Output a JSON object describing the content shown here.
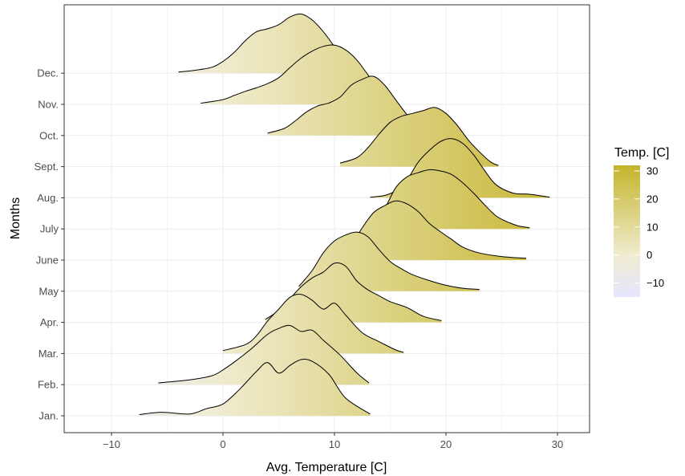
{
  "chart_data": {
    "type": "ridgeline",
    "xlabel": "Avg. Temperature [C]",
    "ylabel": "Months",
    "xlim": [
      -14,
      33
    ],
    "x_ticks": [
      -10,
      0,
      10,
      20,
      30
    ],
    "x_tick_labels": [
      "−10",
      "0",
      "10",
      "20",
      "30"
    ],
    "grid": true,
    "legend": {
      "title": "Temp. [C]",
      "position": "right",
      "ticks": [
        30,
        20,
        10,
        0,
        -10
      ],
      "tick_labels": [
        "30",
        "20",
        "10",
        "0",
        "−10"
      ],
      "range": [
        -15,
        32
      ]
    },
    "colors": {
      "low": "#e6e6ff",
      "mid": "#f0ecd0",
      "high": "#c5b42a",
      "grid": "#ebebeb",
      "outline": "#000000"
    },
    "series": [
      {
        "name": "Jan.",
        "x": [
          -7.5,
          -5.5,
          -3,
          -1.5,
          0,
          1.5,
          3,
          4,
          5,
          6,
          7,
          8,
          9.5,
          11,
          13.2
        ],
        "density": [
          0.02,
          0.06,
          0.03,
          0.12,
          0.2,
          0.45,
          0.75,
          0.9,
          0.72,
          0.85,
          0.95,
          0.92,
          0.7,
          0.3,
          0.03
        ]
      },
      {
        "name": "Feb.",
        "x": [
          -5.8,
          -3,
          -1,
          0,
          1,
          2.5,
          4,
          5,
          6,
          7,
          8,
          9,
          10.5,
          12,
          13.1
        ],
        "density": [
          0.03,
          0.08,
          0.15,
          0.25,
          0.38,
          0.6,
          0.85,
          0.95,
          1.0,
          0.9,
          0.92,
          0.75,
          0.5,
          0.2,
          0.03
        ]
      },
      {
        "name": "Mar.",
        "x": [
          0,
          2,
          3,
          4,
          5,
          6,
          7,
          8,
          9,
          10,
          11,
          12.5,
          14,
          15.5,
          16.2
        ],
        "density": [
          0.05,
          0.15,
          0.3,
          0.55,
          0.75,
          0.95,
          1.0,
          0.9,
          0.75,
          0.85,
          0.65,
          0.35,
          0.2,
          0.06,
          0.02
        ]
      },
      {
        "name": "Apr.",
        "x": [
          3.8,
          5,
          6,
          7,
          8,
          9,
          10,
          11,
          12,
          13,
          14,
          15,
          16.5,
          18,
          19.6
        ],
        "density": [
          0.05,
          0.2,
          0.4,
          0.6,
          0.75,
          0.85,
          1.0,
          0.95,
          0.7,
          0.55,
          0.45,
          0.35,
          0.25,
          0.1,
          0.03
        ]
      },
      {
        "name": "May",
        "x": [
          6.8,
          8,
          9,
          10,
          11,
          12,
          13,
          14,
          15,
          16,
          17,
          18.5,
          20,
          21.5,
          23
        ],
        "density": [
          0.08,
          0.35,
          0.65,
          0.85,
          0.95,
          1.0,
          0.92,
          0.7,
          0.5,
          0.38,
          0.28,
          0.18,
          0.1,
          0.05,
          0.03
        ]
      },
      {
        "name": "June",
        "x": [
          10.3,
          11.5,
          12.5,
          13.5,
          14.5,
          15.5,
          16.5,
          17.5,
          18.5,
          19.5,
          20.5,
          21.5,
          23,
          25,
          27.2
        ],
        "density": [
          0.05,
          0.25,
          0.55,
          0.8,
          0.92,
          1.0,
          0.95,
          0.82,
          0.62,
          0.48,
          0.35,
          0.22,
          0.12,
          0.06,
          0.03
        ]
      },
      {
        "name": "July",
        "x": [
          13.2,
          14.5,
          15.5,
          16.5,
          17.5,
          18.5,
          19.5,
          20.5,
          21.5,
          22.5,
          23.5,
          24.5,
          25.5,
          26.5,
          27.5
        ],
        "density": [
          0.06,
          0.35,
          0.7,
          0.88,
          0.95,
          1.0,
          0.98,
          0.92,
          0.78,
          0.6,
          0.4,
          0.22,
          0.12,
          0.05,
          0.02
        ]
      },
      {
        "name": "Aug.",
        "x": [
          13.2,
          14.5,
          15.5,
          16.5,
          17.5,
          18.5,
          19.5,
          20.5,
          21.5,
          22.5,
          23.5,
          24.5,
          26,
          27.5,
          29.3
        ],
        "density": [
          0.01,
          0.04,
          0.12,
          0.3,
          0.6,
          0.8,
          0.95,
          1.0,
          0.92,
          0.72,
          0.45,
          0.22,
          0.08,
          0.06,
          0.01
        ]
      },
      {
        "name": "Sept.",
        "x": [
          10.5,
          12,
          13,
          14,
          15,
          16,
          17,
          18,
          19,
          20,
          21,
          22,
          23,
          24,
          24.7
        ],
        "density": [
          0.06,
          0.15,
          0.32,
          0.55,
          0.75,
          0.85,
          0.9,
          0.95,
          1.0,
          0.9,
          0.7,
          0.45,
          0.25,
          0.08,
          0.02
        ]
      },
      {
        "name": "Oct.",
        "x": [
          4,
          5.5,
          6.5,
          7.5,
          8.5,
          9.5,
          10.5,
          11.5,
          12.5,
          13.5,
          14.5,
          15.5,
          16.5,
          17.5,
          18.6
        ],
        "density": [
          0.04,
          0.12,
          0.25,
          0.4,
          0.5,
          0.55,
          0.65,
          0.85,
          0.95,
          1.0,
          0.85,
          0.6,
          0.35,
          0.12,
          0.02
        ]
      },
      {
        "name": "Nov.",
        "x": [
          -2,
          0,
          1,
          2,
          3,
          4,
          5,
          6,
          7,
          8,
          9,
          10,
          11,
          12,
          13,
          14,
          15
        ],
        "density": [
          0.02,
          0.08,
          0.15,
          0.22,
          0.28,
          0.35,
          0.45,
          0.62,
          0.78,
          0.9,
          0.98,
          1.0,
          0.92,
          0.75,
          0.5,
          0.25,
          0.04
        ]
      },
      {
        "name": "Dec.",
        "x": [
          -4,
          -2.5,
          -1,
          0,
          1,
          2,
          3,
          4,
          5,
          6,
          7,
          8,
          9,
          10,
          11,
          12
        ],
        "density": [
          0.02,
          0.05,
          0.1,
          0.2,
          0.35,
          0.55,
          0.7,
          0.75,
          0.82,
          0.95,
          1.0,
          0.9,
          0.7,
          0.45,
          0.2,
          0.03
        ]
      }
    ]
  }
}
